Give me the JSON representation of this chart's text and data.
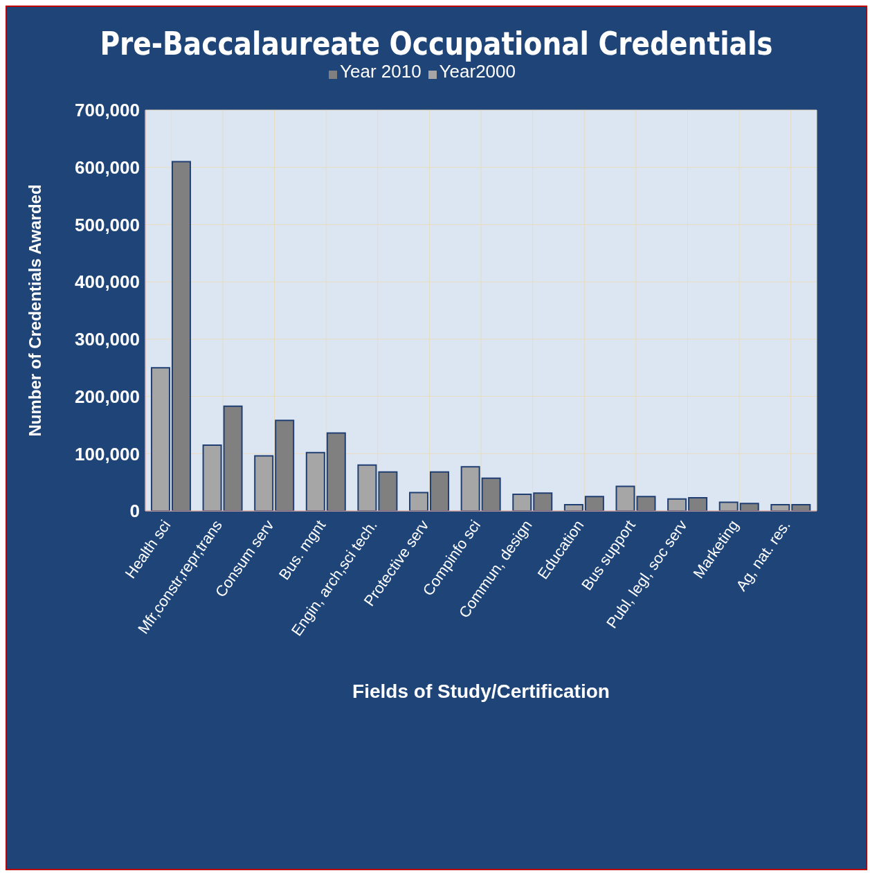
{
  "chart_data": {
    "type": "bar",
    "title": "Pre-Baccalaureate Occupational Credentials",
    "xlabel": "Fields of Study/Certification",
    "ylabel": "Number of Credentials Awarded",
    "categories": [
      "Health sci",
      "Mfr,constr,repr,trans",
      "Consum serv",
      "Bus. mgnt",
      "Engin, arch,sci tech.",
      "Protective serv",
      "Compinfo sci",
      "Commun, design",
      "Education",
      "Bus support",
      "Publ, legl, soc serv",
      "Marketing",
      "Ag, nat. res."
    ],
    "series": [
      {
        "name": "Year2000",
        "color": "#a6a6a6",
        "values": [
          250000,
          115000,
          96000,
          102000,
          80000,
          32000,
          77000,
          29000,
          11000,
          43000,
          21000,
          15000,
          11000
        ]
      },
      {
        "name": "Year 2010",
        "color": "#808080",
        "values": [
          610000,
          183000,
          158000,
          136000,
          68000,
          68000,
          57000,
          31000,
          25000,
          25000,
          23000,
          13000,
          11000
        ]
      }
    ],
    "ylim": [
      0,
      700000
    ],
    "yticks": [
      {
        "value": 0,
        "label": "0"
      },
      {
        "value": 100000,
        "label": "100,000"
      },
      {
        "value": 200000,
        "label": "200,000"
      },
      {
        "value": 300000,
        "label": "300,000"
      },
      {
        "value": 400000,
        "label": "400,000"
      },
      {
        "value": 500000,
        "label": "500,000"
      },
      {
        "value": 600000,
        "label": "600,000"
      },
      {
        "value": 700000,
        "label": "700,000"
      }
    ],
    "grid": true,
    "legend": "top"
  }
}
